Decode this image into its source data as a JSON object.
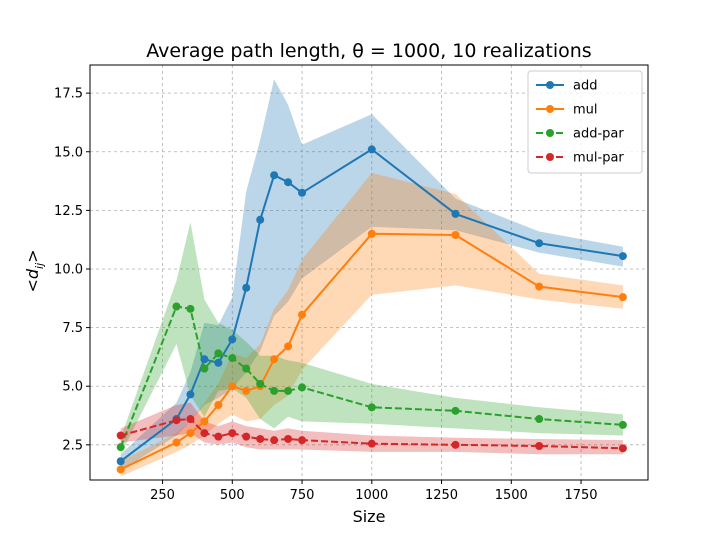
{
  "chart_data": {
    "type": "line",
    "title": "Average path length, θ = 1000, 10 realizations",
    "xlabel": "Size",
    "ylabel": "<d_ij>",
    "xlim": [
      -10,
      1990
    ],
    "ylim": [
      1.0,
      18.7
    ],
    "xticks": [
      250,
      500,
      750,
      1000,
      1250,
      1500,
      1750
    ],
    "yticks": [
      2.5,
      5.0,
      7.5,
      10.0,
      12.5,
      15.0,
      17.5
    ],
    "grid": true,
    "legend_position": "top-right",
    "series": [
      {
        "name": "add",
        "color": "#1f77b4",
        "dashed": false,
        "x": [
          100,
          300,
          350,
          400,
          450,
          500,
          550,
          600,
          650,
          700,
          750,
          1000,
          1300,
          1600,
          1900
        ],
        "y": [
          1.8,
          3.6,
          4.65,
          6.15,
          6.0,
          7.0,
          9.2,
          12.1,
          14.0,
          13.7,
          13.25,
          15.1,
          12.35,
          11.1,
          10.55
        ],
        "lower": [
          1.4,
          2.9,
          3.5,
          4.2,
          4.5,
          4.9,
          5.6,
          6.5,
          8.0,
          8.6,
          9.6,
          11.8,
          11.65,
          10.7,
          10.1
        ],
        "upper": [
          2.1,
          4.3,
          5.6,
          7.7,
          7.6,
          8.8,
          13.3,
          15.5,
          18.1,
          17.0,
          15.3,
          16.6,
          13.0,
          11.6,
          10.95
        ]
      },
      {
        "name": "mul",
        "color": "#ff7f0e",
        "dashed": false,
        "x": [
          100,
          300,
          350,
          400,
          450,
          500,
          550,
          600,
          650,
          700,
          750,
          1000,
          1300,
          1600,
          1900
        ],
        "y": [
          1.45,
          2.6,
          3.0,
          3.5,
          4.2,
          5.0,
          4.8,
          5.0,
          6.15,
          6.7,
          8.05,
          11.5,
          11.45,
          9.25,
          8.8
        ],
        "lower": [
          1.15,
          2.2,
          2.5,
          2.9,
          3.4,
          3.8,
          3.5,
          3.6,
          4.2,
          4.6,
          5.7,
          8.9,
          9.3,
          8.7,
          8.3
        ],
        "upper": [
          1.8,
          3.0,
          3.5,
          4.3,
          5.1,
          6.4,
          6.2,
          6.8,
          8.3,
          9.1,
          10.4,
          14.1,
          13.2,
          9.8,
          9.3
        ]
      },
      {
        "name": "add-par",
        "color": "#2ca02c",
        "dashed": true,
        "x": [
          100,
          300,
          350,
          400,
          450,
          500,
          550,
          600,
          650,
          700,
          750,
          1000,
          1300,
          1600,
          1900
        ],
        "y": [
          2.4,
          8.4,
          8.3,
          5.75,
          6.4,
          6.2,
          5.75,
          5.1,
          4.8,
          4.8,
          4.95,
          4.1,
          3.95,
          3.6,
          3.35
        ],
        "lower": [
          2.1,
          6.8,
          4.6,
          3.7,
          4.8,
          4.9,
          4.5,
          3.6,
          3.2,
          3.7,
          3.5,
          3.4,
          3.2,
          3.0,
          2.9
        ],
        "upper": [
          2.8,
          9.5,
          12.0,
          8.7,
          7.7,
          7.4,
          6.9,
          6.3,
          6.3,
          6.1,
          6.0,
          5.1,
          4.5,
          4.1,
          3.8
        ]
      },
      {
        "name": "mul-par",
        "color": "#d62728",
        "dashed": true,
        "x": [
          100,
          300,
          350,
          400,
          450,
          500,
          550,
          600,
          650,
          700,
          750,
          1000,
          1300,
          1600,
          1900
        ],
        "y": [
          2.9,
          3.55,
          3.6,
          3.0,
          2.85,
          3.0,
          2.85,
          2.75,
          2.7,
          2.75,
          2.7,
          2.55,
          2.5,
          2.45,
          2.35
        ],
        "lower": [
          2.6,
          2.9,
          3.0,
          2.6,
          2.5,
          2.6,
          2.4,
          2.3,
          2.3,
          2.3,
          2.3,
          2.2,
          2.2,
          2.1,
          2.1
        ],
        "upper": [
          3.2,
          4.2,
          4.3,
          3.5,
          3.3,
          3.5,
          3.3,
          3.2,
          3.1,
          3.2,
          3.1,
          2.9,
          2.8,
          2.75,
          2.7
        ]
      }
    ]
  }
}
